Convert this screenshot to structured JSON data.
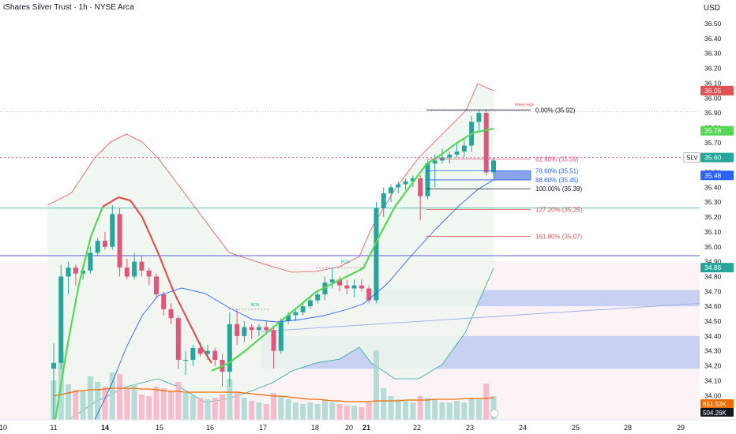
{
  "header": {
    "title": "iShares Silver Trust · 1h · NYSE Arca",
    "currency": "USD"
  },
  "colors": {
    "up": "#26a69a",
    "down": "#e0557a",
    "ema_up": "#57d657",
    "ema_down": "#e05252",
    "bb_upper": "#e05252",
    "bb_lower": "#2962ff",
    "bb_fill_up": "#eef7ee",
    "bb_fill_down": "#f9ebee",
    "ob_blue": "#b7c6ef",
    "volume_ma": "#ef6c00",
    "hline_teal": "#26a69a",
    "hline_purple": "#5b5bd6",
    "hline_gray": "#9e9e9e",
    "hline_pink": "#e05587"
  },
  "chart_data": {
    "type": "candlestick",
    "symbol": "SLV",
    "ylim": [
      33.8,
      36.6
    ],
    "y_ticks": [
      "36.50",
      "36.40",
      "36.30",
      "36.20",
      "36.10",
      "36.00",
      "35.90",
      "35.80",
      "35.70",
      "35.50",
      "35.40",
      "35.30",
      "35.20",
      "35.10",
      "35.00",
      "34.90",
      "34.80",
      "34.70",
      "34.60",
      "34.50",
      "34.40",
      "34.30",
      "34.20",
      "34.10",
      "34.00",
      "33.90"
    ],
    "x_ticks": [
      "10",
      "11",
      "14",
      "15",
      "16",
      "17",
      "18",
      "20",
      "21",
      "22",
      "23",
      "24",
      "25",
      "28",
      "29"
    ],
    "x_tick_bold": [
      "14",
      "21"
    ],
    "candles": [
      {
        "o": 34.18,
        "h": 34.35,
        "l": 33.82,
        "c": 34.22
      },
      {
        "o": 34.22,
        "h": 34.88,
        "l": 34.18,
        "c": 34.8
      },
      {
        "o": 34.8,
        "h": 34.9,
        "l": 34.68,
        "c": 34.86
      },
      {
        "o": 34.86,
        "h": 34.88,
        "l": 34.74,
        "c": 34.82
      },
      {
        "o": 34.82,
        "h": 34.88,
        "l": 34.78,
        "c": 34.84
      },
      {
        "o": 34.84,
        "h": 35.0,
        "l": 34.82,
        "c": 34.96
      },
      {
        "o": 34.96,
        "h": 35.06,
        "l": 34.94,
        "c": 35.04
      },
      {
        "o": 35.04,
        "h": 35.1,
        "l": 34.98,
        "c": 35.0
      },
      {
        "o": 35.0,
        "h": 35.28,
        "l": 34.98,
        "c": 35.22
      },
      {
        "o": 35.22,
        "h": 35.26,
        "l": 34.8,
        "c": 34.86
      },
      {
        "o": 34.86,
        "h": 34.92,
        "l": 34.78,
        "c": 34.8
      },
      {
        "o": 34.8,
        "h": 34.96,
        "l": 34.78,
        "c": 34.9
      },
      {
        "o": 34.9,
        "h": 34.94,
        "l": 34.8,
        "c": 34.84
      },
      {
        "o": 34.84,
        "h": 34.86,
        "l": 34.74,
        "c": 34.8
      },
      {
        "o": 34.8,
        "h": 34.82,
        "l": 34.66,
        "c": 34.68
      },
      {
        "o": 34.68,
        "h": 34.7,
        "l": 34.54,
        "c": 34.58
      },
      {
        "o": 34.58,
        "h": 34.62,
        "l": 34.48,
        "c": 34.52
      },
      {
        "o": 34.52,
        "h": 34.54,
        "l": 34.18,
        "c": 34.24
      },
      {
        "o": 34.24,
        "h": 34.3,
        "l": 34.14,
        "c": 34.24
      },
      {
        "o": 34.24,
        "h": 34.34,
        "l": 34.2,
        "c": 34.32
      },
      {
        "o": 34.32,
        "h": 34.36,
        "l": 34.26,
        "c": 34.28
      },
      {
        "o": 34.28,
        "h": 34.34,
        "l": 34.24,
        "c": 34.3
      },
      {
        "o": 34.3,
        "h": 34.32,
        "l": 34.2,
        "c": 34.24
      },
      {
        "o": 34.24,
        "h": 34.28,
        "l": 34.06,
        "c": 34.16
      },
      {
        "o": 34.16,
        "h": 34.56,
        "l": 34.06,
        "c": 34.48
      },
      {
        "o": 34.48,
        "h": 34.58,
        "l": 34.34,
        "c": 34.4
      },
      {
        "o": 34.4,
        "h": 34.5,
        "l": 34.36,
        "c": 34.46
      },
      {
        "o": 34.46,
        "h": 34.48,
        "l": 34.38,
        "c": 34.44
      },
      {
        "o": 34.44,
        "h": 34.48,
        "l": 34.4,
        "c": 34.46
      },
      {
        "o": 34.46,
        "h": 34.5,
        "l": 34.42,
        "c": 34.44
      },
      {
        "o": 34.44,
        "h": 34.46,
        "l": 34.18,
        "c": 34.3
      },
      {
        "o": 34.3,
        "h": 34.52,
        "l": 34.28,
        "c": 34.5
      },
      {
        "o": 34.5,
        "h": 34.56,
        "l": 34.48,
        "c": 34.54
      },
      {
        "o": 34.54,
        "h": 34.58,
        "l": 34.5,
        "c": 34.56
      },
      {
        "o": 34.56,
        "h": 34.62,
        "l": 34.54,
        "c": 34.6
      },
      {
        "o": 34.6,
        "h": 34.66,
        "l": 34.58,
        "c": 34.64
      },
      {
        "o": 34.64,
        "h": 34.7,
        "l": 34.62,
        "c": 34.68
      },
      {
        "o": 34.68,
        "h": 34.8,
        "l": 34.64,
        "c": 34.76
      },
      {
        "o": 34.76,
        "h": 34.86,
        "l": 34.72,
        "c": 34.78
      },
      {
        "o": 34.78,
        "h": 34.8,
        "l": 34.7,
        "c": 34.74
      },
      {
        "o": 34.74,
        "h": 34.78,
        "l": 34.68,
        "c": 34.72
      },
      {
        "o": 34.72,
        "h": 34.78,
        "l": 34.66,
        "c": 34.74
      },
      {
        "o": 34.74,
        "h": 34.78,
        "l": 34.7,
        "c": 34.72
      },
      {
        "o": 34.72,
        "h": 34.74,
        "l": 34.62,
        "c": 34.64
      },
      {
        "o": 34.64,
        "h": 35.3,
        "l": 34.62,
        "c": 35.26
      },
      {
        "o": 35.26,
        "h": 35.4,
        "l": 35.2,
        "c": 35.36
      },
      {
        "o": 35.36,
        "h": 35.42,
        "l": 35.3,
        "c": 35.4
      },
      {
        "o": 35.4,
        "h": 35.44,
        "l": 35.36,
        "c": 35.42
      },
      {
        "o": 35.42,
        "h": 35.46,
        "l": 35.38,
        "c": 35.44
      },
      {
        "o": 35.44,
        "h": 35.48,
        "l": 35.4,
        "c": 35.46
      },
      {
        "o": 35.46,
        "h": 35.48,
        "l": 35.18,
        "c": 35.34
      },
      {
        "o": 35.34,
        "h": 35.58,
        "l": 35.32,
        "c": 35.56
      },
      {
        "o": 35.56,
        "h": 35.62,
        "l": 35.4,
        "c": 35.58
      },
      {
        "o": 35.58,
        "h": 35.66,
        "l": 35.56,
        "c": 35.6
      },
      {
        "o": 35.6,
        "h": 35.64,
        "l": 35.56,
        "c": 35.62
      },
      {
        "o": 35.62,
        "h": 35.7,
        "l": 35.6,
        "c": 35.64
      },
      {
        "o": 35.64,
        "h": 35.72,
        "l": 35.6,
        "c": 35.68
      },
      {
        "o": 35.68,
        "h": 35.88,
        "l": 35.64,
        "c": 35.84
      },
      {
        "o": 35.84,
        "h": 35.92,
        "l": 35.78,
        "c": 35.9
      },
      {
        "o": 35.9,
        "h": 35.92,
        "l": 35.48,
        "c": 35.5
      },
      {
        "o": 35.5,
        "h": 35.6,
        "l": 35.48,
        "c": 35.58
      }
    ],
    "volume_ma": [
      0.3,
      0.32,
      0.34,
      0.36,
      0.37,
      0.38,
      0.38,
      0.39,
      0.4,
      0.4,
      0.4,
      0.4,
      0.39,
      0.39,
      0.38,
      0.37,
      0.36,
      0.36,
      0.35,
      0.35,
      0.35,
      0.35,
      0.35,
      0.35,
      0.35,
      0.35,
      0.34,
      0.33,
      0.32,
      0.31,
      0.3,
      0.3,
      0.29,
      0.28,
      0.27,
      0.26,
      0.26,
      0.25,
      0.24,
      0.24,
      0.23,
      0.23,
      0.23,
      0.23,
      0.24,
      0.24,
      0.24,
      0.24,
      0.25,
      0.25,
      0.25,
      0.25,
      0.26,
      0.26,
      0.26,
      0.26,
      0.27,
      0.27,
      0.27,
      0.27,
      0.28
    ],
    "volume": [
      0.5,
      0.85,
      0.45,
      0.38,
      0.36,
      0.55,
      0.48,
      0.42,
      0.6,
      0.58,
      0.4,
      0.45,
      0.32,
      0.3,
      0.42,
      0.4,
      0.36,
      0.48,
      0.34,
      0.3,
      0.28,
      0.26,
      0.28,
      0.32,
      0.52,
      0.36,
      0.28,
      0.24,
      0.22,
      0.2,
      0.34,
      0.3,
      0.26,
      0.22,
      0.2,
      0.22,
      0.2,
      0.26,
      0.22,
      0.2,
      0.18,
      0.18,
      0.16,
      0.22,
      0.88,
      0.4,
      0.3,
      0.26,
      0.24,
      0.22,
      0.3,
      0.28,
      0.26,
      0.22,
      0.22,
      0.24,
      0.22,
      0.28,
      0.26,
      0.46,
      0.3
    ],
    "levels": {
      "week_high": {
        "label": "Week High",
        "price": 35.92
      },
      "fib": [
        {
          "label": "0.00% (35.92)",
          "price": 35.92,
          "color": "#131722"
        },
        {
          "label": "61.80% (35.59)",
          "price": 35.59,
          "color": "#e05587"
        },
        {
          "label": "78.60% (35.51)",
          "price": 35.51,
          "color": "#2962ff"
        },
        {
          "label": "88.60% (35.45)",
          "price": 35.45,
          "color": "#2962ff"
        },
        {
          "label": "100.00% (35.39)",
          "price": 35.39,
          "color": "#131722"
        },
        {
          "label": "127.20% (35.25)",
          "price": 35.25,
          "color": "#e05252"
        },
        {
          "label": "161.80% (35.07)",
          "price": 35.07,
          "color": "#e05252"
        }
      ],
      "bos_1": "BOS",
      "bos_2": "BOS"
    },
    "price_badges": [
      {
        "label": "36.05",
        "price": 36.05,
        "bg": "#e05252"
      },
      {
        "label": "35.78",
        "price": 35.78,
        "bg": "#57d657"
      },
      {
        "label": "35.60",
        "price": 35.6,
        "bg": "#26a69a"
      },
      {
        "label": "35.48",
        "price": 35.48,
        "bg": "#2962ff"
      },
      {
        "label": "34.86",
        "price": 34.86,
        "bg": "#26a69a"
      }
    ],
    "symbol_badge": {
      "label": "SLV",
      "price": 35.6
    },
    "volume_badges": [
      {
        "label": "651.53K",
        "bg": "#ef6c00"
      },
      {
        "label": "504.26K",
        "bg": "#131722"
      }
    ]
  }
}
